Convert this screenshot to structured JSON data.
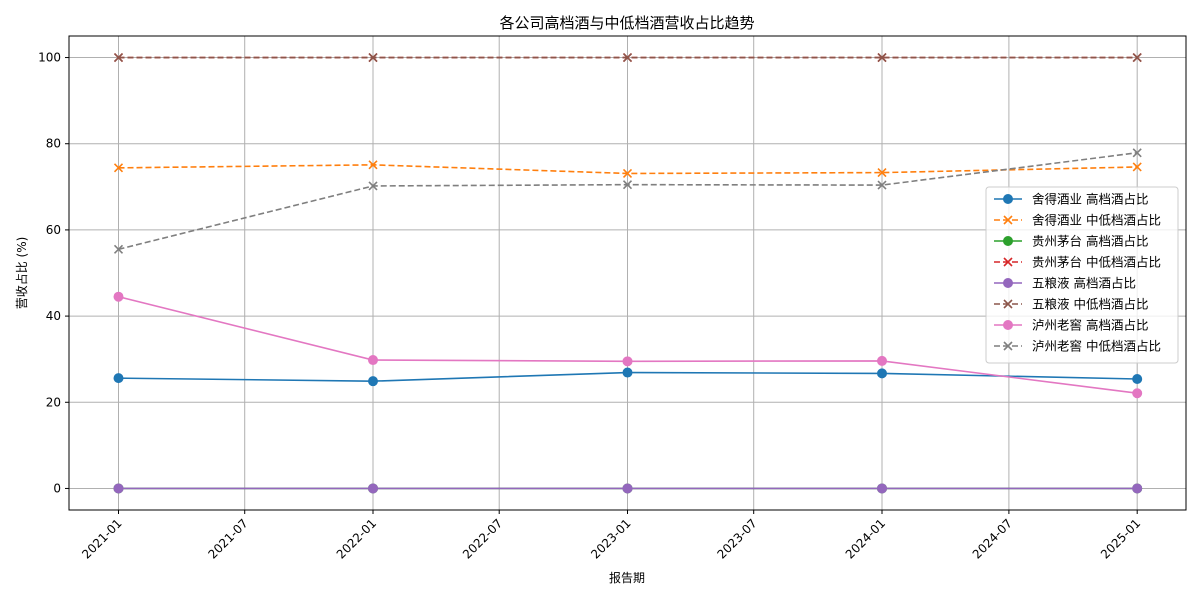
{
  "chart_data": {
    "type": "line",
    "title": "各公司高档酒与中低档酒营收占比趋势",
    "xlabel": "报告期",
    "ylabel": "营收占比 (%)",
    "x": [
      "2021-01-01",
      "2022-01-01",
      "2023-01-01",
      "2024-01-01",
      "2025-01-01"
    ],
    "x_ticks": [
      "2021-01",
      "2021-07",
      "2022-01",
      "2022-07",
      "2023-01",
      "2023-07",
      "2024-01",
      "2024-07",
      "2025-01"
    ],
    "y_ticks": [
      0,
      20,
      40,
      60,
      80,
      100
    ],
    "ylim": [
      -5,
      105
    ],
    "xlim": [
      "2020-10-22",
      "2025-03-12"
    ],
    "grid": true,
    "legend_position": "center-right",
    "series": [
      {
        "name": "舍得酒业 高档酒占比",
        "values": [
          25.6,
          24.9,
          26.9,
          26.7,
          25.4
        ],
        "color": "#1f77b4",
        "style": "solid",
        "marker": "circle"
      },
      {
        "name": "舍得酒业 中低档酒占比",
        "values": [
          74.4,
          75.1,
          73.1,
          73.3,
          74.6
        ],
        "color": "#ff7f0e",
        "style": "dashed",
        "marker": "x"
      },
      {
        "name": "贵州茅台 高档酒占比",
        "values": [
          0,
          0,
          0,
          0,
          0
        ],
        "color": "#2ca02c",
        "style": "solid",
        "marker": "circle"
      },
      {
        "name": "贵州茅台 中低档酒占比",
        "values": [
          100,
          100,
          100,
          100,
          100
        ],
        "color": "#d62728",
        "style": "dashed",
        "marker": "x"
      },
      {
        "name": "五粮液 高档酒占比",
        "values": [
          0,
          0,
          0,
          0,
          0
        ],
        "color": "#9467bd",
        "style": "solid",
        "marker": "circle"
      },
      {
        "name": "五粮液 中低档酒占比",
        "values": [
          100,
          100,
          100,
          100,
          100
        ],
        "color": "#8c564b",
        "style": "dashed",
        "marker": "x"
      },
      {
        "name": "泸州老窖 高档酒占比",
        "values": [
          44.5,
          29.8,
          29.5,
          29.6,
          22.1
        ],
        "color": "#e377c2",
        "style": "solid",
        "marker": "circle"
      },
      {
        "name": "泸州老窖 中低档酒占比",
        "values": [
          55.5,
          70.2,
          70.5,
          70.4,
          77.9
        ],
        "color": "#7f7f7f",
        "style": "dashed",
        "marker": "x"
      }
    ]
  }
}
